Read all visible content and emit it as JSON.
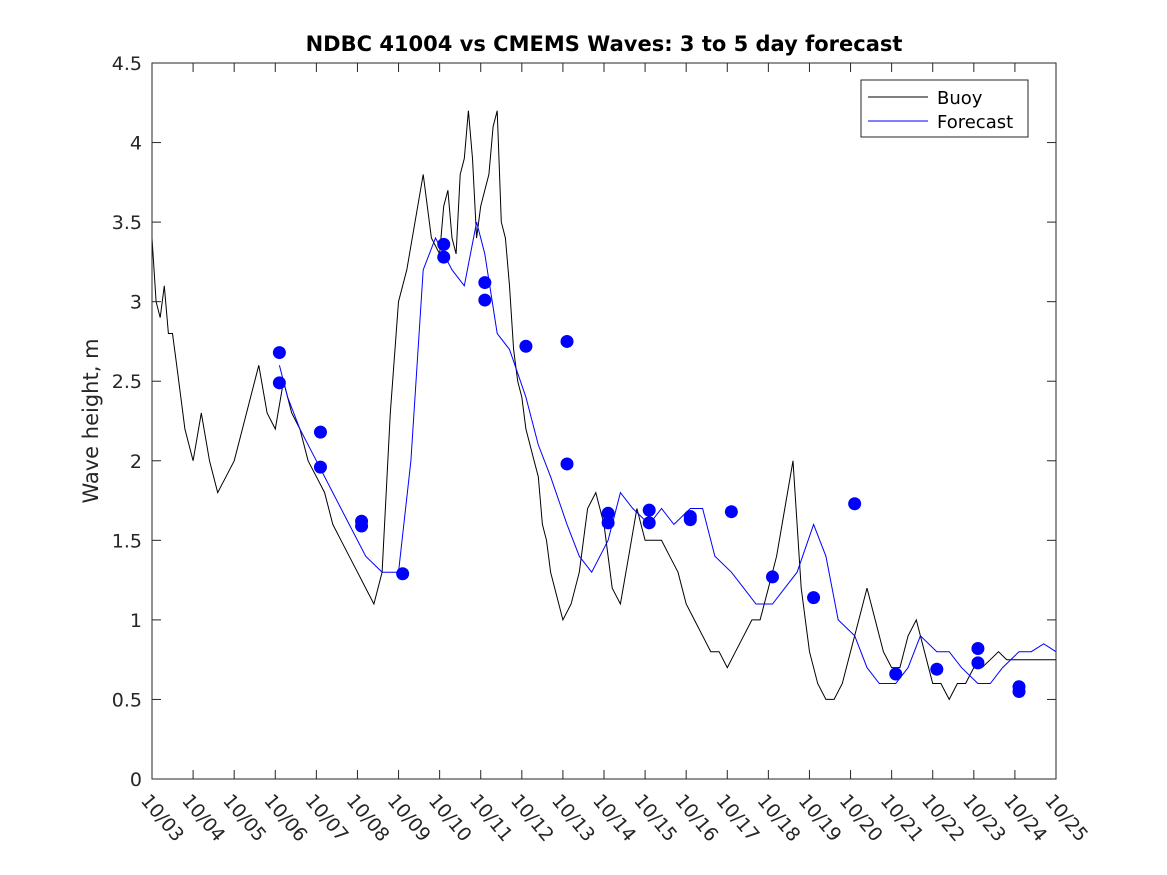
{
  "chart_data": {
    "type": "line",
    "title": "NDBC 41004 vs CMEMS Waves: 3 to 5 day forecast",
    "xlabel": "",
    "ylabel": "Wave height, m",
    "xlim": [
      0,
      22
    ],
    "ylim": [
      0,
      4.5
    ],
    "grid": false,
    "legend_position": "top-right",
    "x_tick_labels": [
      "10/03",
      "10/04",
      "10/05",
      "10/06",
      "10/07",
      "10/08",
      "10/09",
      "10/10",
      "10/11",
      "10/12",
      "10/13",
      "10/14",
      "10/15",
      "10/16",
      "10/17",
      "10/18",
      "10/19",
      "10/20",
      "10/21",
      "10/22",
      "10/23",
      "10/24",
      "10/25"
    ],
    "y_ticks": [
      "0",
      "0.5",
      "1",
      "1.5",
      "2",
      "2.5",
      "3",
      "3.5",
      "4",
      "4.5"
    ],
    "legend": [
      "Buoy",
      "Forecast"
    ],
    "colors": {
      "buoy": "#000000",
      "forecast": "#0000ff",
      "axis": "#262626"
    },
    "series": [
      {
        "name": "Buoy",
        "x": [
          0,
          0.1,
          0.2,
          0.3,
          0.4,
          0.5,
          0.6,
          0.7,
          0.8,
          0.9,
          1,
          1.2,
          1.4,
          1.6,
          1.8,
          2,
          2.2,
          2.4,
          2.6,
          2.8,
          3,
          3.2,
          3.4,
          3.6,
          3.8,
          4,
          4.2,
          4.4,
          4.6,
          4.8,
          5,
          5.2,
          5.4,
          5.6,
          5.8,
          6,
          6.2,
          6.4,
          6.6,
          6.8,
          7,
          7.1,
          7.2,
          7.3,
          7.4,
          7.5,
          7.6,
          7.7,
          7.8,
          7.9,
          8,
          8.1,
          8.2,
          8.3,
          8.4,
          8.5,
          8.6,
          8.7,
          8.8,
          8.9,
          9,
          9.1,
          9.2,
          9.3,
          9.4,
          9.5,
          9.6,
          9.7,
          9.8,
          9.9,
          10,
          10.2,
          10.4,
          10.6,
          10.8,
          11,
          11.2,
          11.4,
          11.6,
          11.8,
          12,
          12.2,
          12.4,
          12.6,
          12.8,
          13,
          13.2,
          13.4,
          13.6,
          13.8,
          14,
          14.2,
          14.4,
          14.6,
          14.8,
          15,
          15.2,
          15.4,
          15.6,
          15.8,
          16,
          16.2,
          16.4,
          16.6,
          16.8,
          17,
          17.2,
          17.4,
          17.6,
          17.8,
          18,
          18.2,
          18.4,
          18.6,
          18.8,
          19,
          19.2,
          19.4,
          19.6,
          19.8,
          20,
          20.2,
          20.4,
          20.6,
          20.8,
          21,
          21.2,
          21.4,
          21.6,
          21.8,
          22
        ],
        "values": [
          3.4,
          3.0,
          2.9,
          3.1,
          2.8,
          2.8,
          2.6,
          2.4,
          2.2,
          2.1,
          2.0,
          2.3,
          2.0,
          1.8,
          1.9,
          2.0,
          2.2,
          2.4,
          2.6,
          2.3,
          2.2,
          2.5,
          2.3,
          2.2,
          2.0,
          1.9,
          1.8,
          1.6,
          1.5,
          1.4,
          1.3,
          1.2,
          1.1,
          1.3,
          2.3,
          3.0,
          3.2,
          3.5,
          3.8,
          3.4,
          3.3,
          3.6,
          3.7,
          3.4,
          3.3,
          3.8,
          3.9,
          4.2,
          3.9,
          3.4,
          3.6,
          3.7,
          3.8,
          4.1,
          4.2,
          3.5,
          3.4,
          3.1,
          2.7,
          2.5,
          2.4,
          2.2,
          2.1,
          2.0,
          1.9,
          1.6,
          1.5,
          1.3,
          1.2,
          1.1,
          1.0,
          1.1,
          1.3,
          1.7,
          1.8,
          1.6,
          1.2,
          1.1,
          1.4,
          1.7,
          1.5,
          1.5,
          1.5,
          1.4,
          1.3,
          1.1,
          1.0,
          0.9,
          0.8,
          0.8,
          0.7,
          0.8,
          0.9,
          1.0,
          1.0,
          1.2,
          1.4,
          1.7,
          2.0,
          1.2,
          0.8,
          0.6,
          0.5,
          0.5,
          0.6,
          0.8,
          1.0,
          1.2,
          1.0,
          0.8,
          0.7,
          0.7,
          0.9,
          1.0,
          0.8,
          0.6,
          0.6,
          0.5,
          0.6,
          0.6,
          0.7,
          0.7,
          0.75,
          0.8,
          0.75,
          0.75,
          0.75,
          0.75,
          0.75,
          0.75,
          0.75
        ]
      },
      {
        "name": "Forecast",
        "x": [
          3.1,
          3.3,
          3.6,
          4.0,
          4.4,
          4.8,
          5.2,
          5.6,
          6.0,
          6.3,
          6.6,
          6.9,
          7.1,
          7.3,
          7.6,
          7.9,
          8.1,
          8.4,
          8.7,
          9.1,
          9.4,
          9.7,
          10.1,
          10.4,
          10.7,
          11.1,
          11.4,
          11.7,
          12.1,
          12.4,
          12.7,
          13.1,
          13.4,
          13.7,
          14.1,
          14.4,
          14.7,
          15.1,
          15.4,
          15.7,
          16.1,
          16.4,
          16.7,
          17.1,
          17.4,
          17.7,
          18.1,
          18.4,
          18.7,
          19.1,
          19.4,
          19.7,
          20.1,
          20.4,
          20.7,
          21.1,
          21.4,
          21.7,
          22.0
        ],
        "values": [
          2.6,
          2.4,
          2.2,
          2.0,
          1.8,
          1.6,
          1.4,
          1.3,
          1.3,
          2.0,
          3.2,
          3.4,
          3.3,
          3.2,
          3.1,
          3.5,
          3.3,
          2.8,
          2.7,
          2.4,
          2.1,
          1.9,
          1.6,
          1.4,
          1.3,
          1.5,
          1.8,
          1.7,
          1.6,
          1.7,
          1.6,
          1.7,
          1.7,
          1.4,
          1.3,
          1.2,
          1.1,
          1.1,
          1.2,
          1.3,
          1.6,
          1.4,
          1.0,
          0.9,
          0.7,
          0.6,
          0.6,
          0.7,
          0.9,
          0.8,
          0.8,
          0.7,
          0.6,
          0.6,
          0.7,
          0.8,
          0.8,
          0.85,
          0.8
        ]
      }
    ],
    "forecast_markers": [
      {
        "x": 3.1,
        "y": 2.68
      },
      {
        "x": 3.1,
        "y": 2.49
      },
      {
        "x": 4.1,
        "y": 2.18
      },
      {
        "x": 4.1,
        "y": 1.96
      },
      {
        "x": 5.1,
        "y": 1.62
      },
      {
        "x": 5.1,
        "y": 1.59
      },
      {
        "x": 6.1,
        "y": 1.29
      },
      {
        "x": 7.1,
        "y": 3.36
      },
      {
        "x": 7.1,
        "y": 3.28
      },
      {
        "x": 8.1,
        "y": 3.12
      },
      {
        "x": 8.1,
        "y": 3.01
      },
      {
        "x": 9.1,
        "y": 2.72
      },
      {
        "x": 10.1,
        "y": 2.75
      },
      {
        "x": 10.1,
        "y": 1.98
      },
      {
        "x": 11.1,
        "y": 1.67
      },
      {
        "x": 11.1,
        "y": 1.61
      },
      {
        "x": 12.1,
        "y": 1.69
      },
      {
        "x": 12.1,
        "y": 1.61
      },
      {
        "x": 13.1,
        "y": 1.65
      },
      {
        "x": 13.1,
        "y": 1.63
      },
      {
        "x": 14.1,
        "y": 1.68
      },
      {
        "x": 15.1,
        "y": 1.27
      },
      {
        "x": 16.1,
        "y": 1.14
      },
      {
        "x": 17.1,
        "y": 1.73
      },
      {
        "x": 18.1,
        "y": 0.66
      },
      {
        "x": 19.1,
        "y": 0.69
      },
      {
        "x": 20.1,
        "y": 0.82
      },
      {
        "x": 20.1,
        "y": 0.73
      },
      {
        "x": 21.1,
        "y": 0.58
      },
      {
        "x": 21.1,
        "y": 0.55
      }
    ]
  }
}
